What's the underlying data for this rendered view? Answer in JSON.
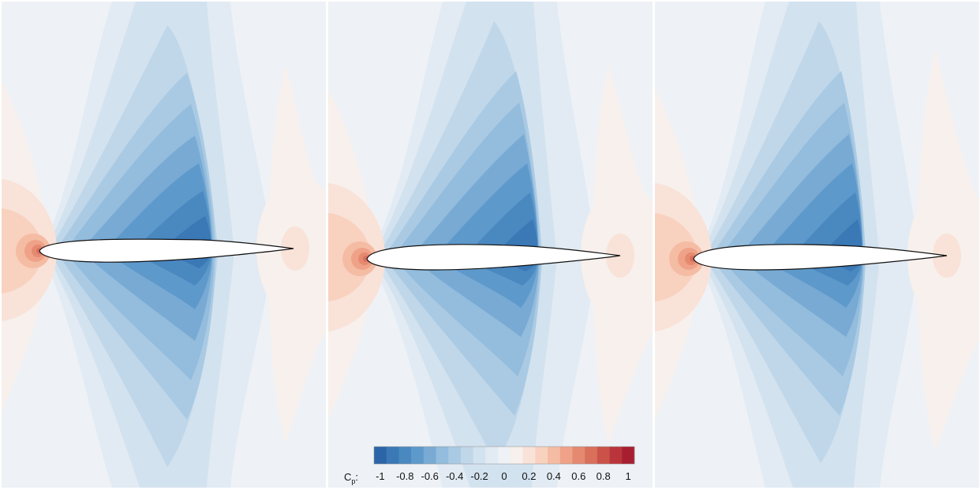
{
  "colorbar": {
    "label_main": "C",
    "label_sub": "p",
    "label_suffix": ":",
    "ticks": [
      {
        "value": -1,
        "label": "-1"
      },
      {
        "value": -0.8,
        "label": "-0.8"
      },
      {
        "value": -0.6,
        "label": "-0.6"
      },
      {
        "value": -0.4,
        "label": "-0.4"
      },
      {
        "value": -0.2,
        "label": "-0.2"
      },
      {
        "value": 0,
        "label": "0"
      },
      {
        "value": 0.2,
        "label": "0.2"
      },
      {
        "value": 0.4,
        "label": "0.4"
      },
      {
        "value": 0.6,
        "label": "0.6"
      },
      {
        "value": 0.8,
        "label": "0.8"
      },
      {
        "value": 1,
        "label": "1"
      }
    ],
    "range": [
      -1.05,
      1.05
    ],
    "levels": [
      {
        "lo": -1.05,
        "hi": -0.95,
        "color": "#2b65a8"
      },
      {
        "lo": -0.95,
        "hi": -0.85,
        "color": "#3a78b6"
      },
      {
        "lo": -0.85,
        "hi": -0.75,
        "color": "#4a88c0"
      },
      {
        "lo": -0.75,
        "hi": -0.65,
        "color": "#5e99cb"
      },
      {
        "lo": -0.65,
        "hi": -0.55,
        "color": "#78aad4"
      },
      {
        "lo": -0.55,
        "hi": -0.45,
        "color": "#93bcdd"
      },
      {
        "lo": -0.45,
        "hi": -0.35,
        "color": "#aacae3"
      },
      {
        "lo": -0.35,
        "hi": -0.25,
        "color": "#c0d7ea"
      },
      {
        "lo": -0.25,
        "hi": -0.15,
        "color": "#d3e2ef"
      },
      {
        "lo": -0.15,
        "hi": -0.05,
        "color": "#e2ebf3"
      },
      {
        "lo": -0.05,
        "hi": 0.05,
        "color": "#eef2f6"
      },
      {
        "lo": 0.05,
        "hi": 0.15,
        "color": "#f7f0ec"
      },
      {
        "lo": 0.15,
        "hi": 0.25,
        "color": "#f9e2d8"
      },
      {
        "lo": 0.25,
        "hi": 0.35,
        "color": "#f9d1bf"
      },
      {
        "lo": 0.35,
        "hi": 0.45,
        "color": "#f5bca4"
      },
      {
        "lo": 0.45,
        "hi": 0.55,
        "color": "#efa288"
      },
      {
        "lo": 0.55,
        "hi": 0.65,
        "color": "#e58a70"
      },
      {
        "lo": 0.65,
        "hi": 0.75,
        "color": "#d9705c"
      },
      {
        "lo": 0.75,
        "hi": 0.85,
        "color": "#ca5249"
      },
      {
        "lo": 0.85,
        "hi": 0.95,
        "color": "#b9353b"
      },
      {
        "lo": 0.95,
        "hi": 1.05,
        "color": "#a81e31"
      }
    ]
  }
}
